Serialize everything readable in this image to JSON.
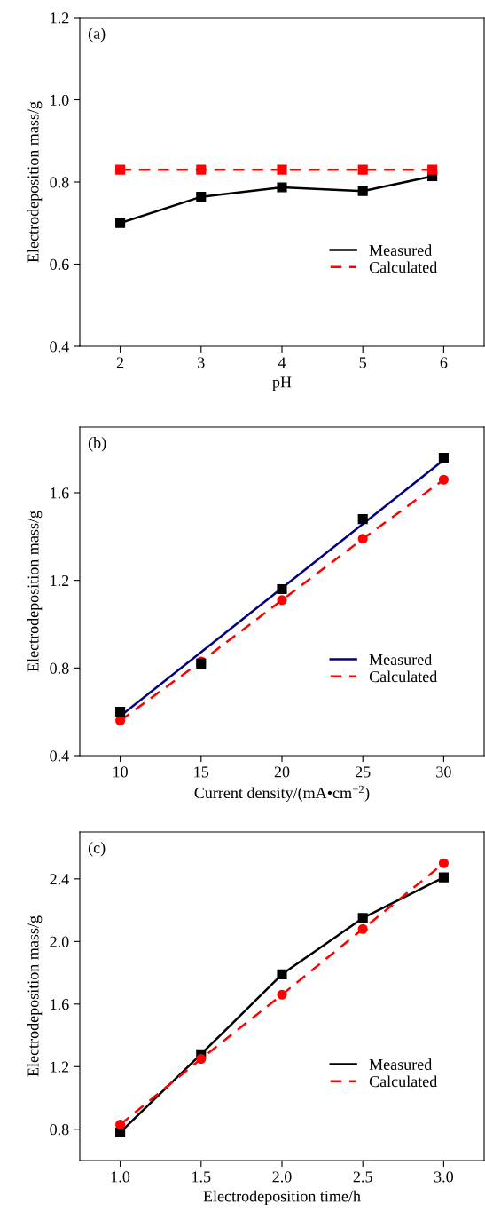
{
  "chart_data": [
    {
      "type": "line",
      "annotations": [
        "(a)"
      ],
      "xlabel": "pH",
      "ylabel": "Electrodeposition mass/g",
      "xlim": [
        1.5,
        6.5
      ],
      "xticks": [
        2,
        3,
        4,
        5,
        6
      ],
      "ylim": [
        0.4,
        1.2
      ],
      "yticks": [
        0.4,
        0.6,
        0.8,
        {
          "value": 1.0,
          "label": "1.0"
        },
        1.2
      ],
      "legend": "lower right",
      "grid": false,
      "series": [
        {
          "name": "Measured",
          "color": "#000000",
          "marker": "square",
          "line_style": "solid",
          "x": [
            2,
            3,
            4,
            5,
            5.86
          ],
          "values": [
            0.7,
            0.764,
            0.787,
            0.778,
            0.814
          ]
        },
        {
          "name": "Calculated",
          "color": "#ff0000",
          "marker": "square",
          "line_style": "dashed",
          "x": [
            2,
            3,
            4,
            5,
            5.86
          ],
          "values": [
            0.83,
            0.83,
            0.83,
            0.83,
            0.83
          ]
        }
      ]
    },
    {
      "type": "line",
      "annotations": [
        "(b)"
      ],
      "xlabel": "Current density/(mA•cm$^{−2}$)",
      "ylabel": "Electrodeposition mass/g",
      "xlim": [
        7.5,
        32.5
      ],
      "xticks": [
        10,
        15,
        20,
        25,
        30
      ],
      "ylim": [
        0.4,
        1.9
      ],
      "yticks": [
        0.4,
        0.8,
        1.2,
        1.6
      ],
      "legend": "lower right",
      "grid": false,
      "series": [
        {
          "type": "scatter",
          "color": "#000000",
          "marker": "square",
          "x": [
            10,
            15,
            20,
            25,
            30
          ],
          "values": [
            0.6,
            0.82,
            1.16,
            1.48,
            1.76
          ]
        },
        {
          "name": "Measured",
          "color": "#000080",
          "marker": "none",
          "line_style": "solid",
          "x": [
            10,
            30
          ],
          "values": [
            0.58,
            1.75
          ]
        },
        {
          "name": "Calculated",
          "color": "#ff0000",
          "marker": "circle",
          "line_style": "dashed",
          "x": [
            10,
            15,
            20,
            25,
            30
          ],
          "values": [
            0.56,
            0.83,
            1.11,
            1.39,
            1.66
          ]
        }
      ]
    },
    {
      "type": "line",
      "annotations": [
        "(c)"
      ],
      "xlabel": "Electrodeposition time/h",
      "ylabel": "Electrodeposition mass/g",
      "xlim": [
        0.75,
        3.25
      ],
      "xticks": [
        {
          "value": 1.0,
          "label": "1.0"
        },
        1.5,
        {
          "value": 2.0,
          "label": "2.0"
        },
        2.5,
        {
          "value": 3.0,
          "label": "3.0"
        }
      ],
      "ylim": [
        0.6,
        2.7
      ],
      "yticks": [
        0.8,
        1.2,
        1.6,
        {
          "value": 2.0,
          "label": "2.0"
        },
        2.4
      ],
      "legend": "lower right",
      "grid": false,
      "series": [
        {
          "name": "Measured",
          "color": "#000000",
          "marker": "square",
          "line_style": "solid",
          "x": [
            1.0,
            1.5,
            2.0,
            2.5,
            3.0
          ],
          "values": [
            0.78,
            1.28,
            1.79,
            2.15,
            2.41
          ]
        },
        {
          "name": "Calculated",
          "color": "#ff0000",
          "marker": "circle",
          "line_style": "dashed",
          "x": [
            1.0,
            1.5,
            2.0,
            2.5,
            3.0
          ],
          "values": [
            0.83,
            1.25,
            1.66,
            2.08,
            2.5
          ]
        }
      ]
    }
  ]
}
